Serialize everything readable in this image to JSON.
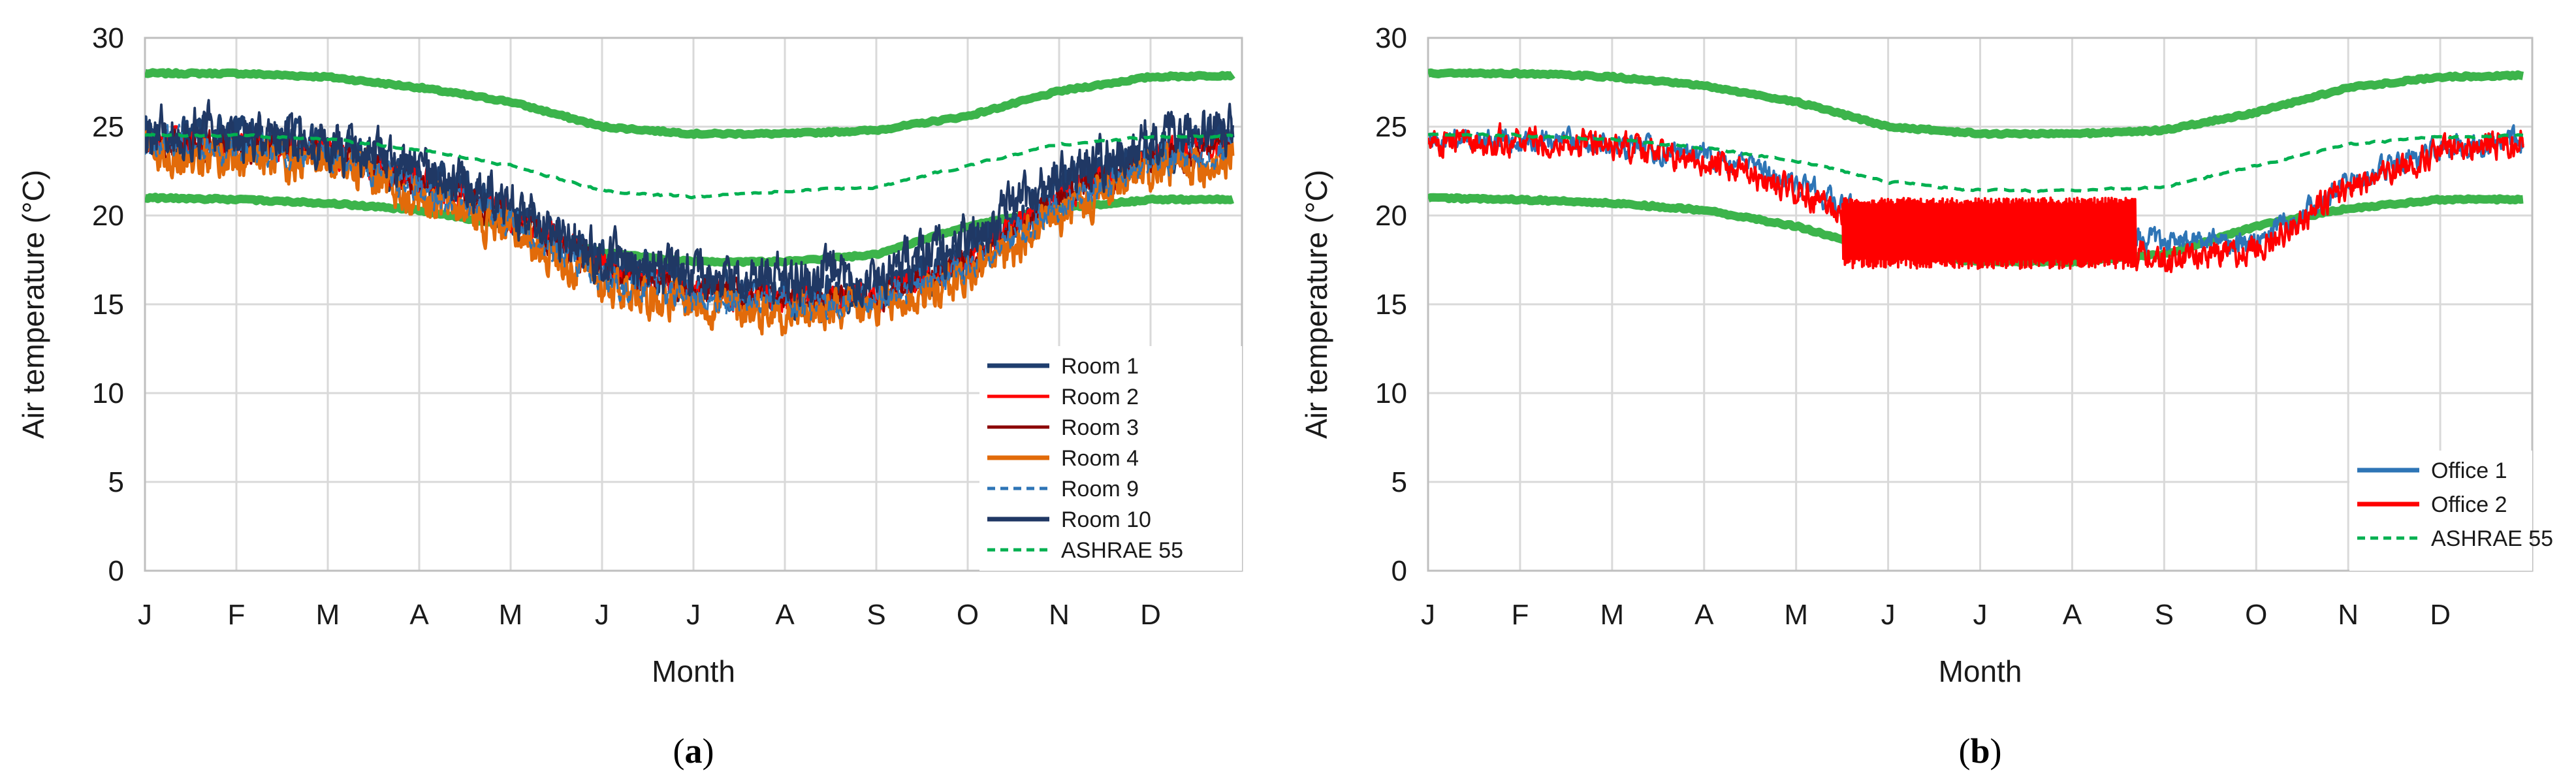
{
  "chart_data": [
    {
      "type": "line",
      "panel_label": "a",
      "xlabel": "Month",
      "ylabel": "Air temperature (°C)",
      "ylim": [
        0,
        30
      ],
      "yticks": [
        0,
        5,
        10,
        15,
        20,
        25,
        30
      ],
      "x_tick_labels": [
        "J",
        "F",
        "M",
        "A",
        "M",
        "J",
        "J",
        "A",
        "S",
        "O",
        "N",
        "D"
      ],
      "xlim_months": [
        0,
        11.9
      ],
      "grid": true,
      "legend_position": "bottom-right",
      "series": [
        {
          "name": "Room 1",
          "color": "#1f3e6e",
          "dash": "solid",
          "width": 9,
          "x": [
            0,
            1,
            2,
            3,
            4,
            5,
            6,
            7,
            8,
            9,
            10,
            11,
            11.9
          ],
          "y": [
            24.6,
            24.4,
            24.0,
            22.3,
            20.2,
            17.4,
            16.0,
            15.4,
            15.6,
            17.9,
            21.4,
            23.6,
            24.5
          ],
          "noise": 0.9
        },
        {
          "name": "Room 2",
          "color": "#ff0000",
          "dash": "solid",
          "width": 5,
          "x": [
            0,
            1,
            2,
            3,
            4,
            5,
            6,
            7,
            8,
            9,
            10,
            11,
            11.9
          ],
          "y": [
            24.2,
            24.0,
            23.6,
            21.9,
            19.9,
            17.0,
            15.8,
            15.2,
            15.3,
            17.4,
            21.0,
            23.2,
            24.1
          ],
          "noise": 0.6
        },
        {
          "name": "Room 3",
          "color": "#8b0000",
          "dash": "solid",
          "width": 5,
          "x": [
            0,
            1,
            2,
            3,
            4,
            5,
            6,
            7,
            8,
            9,
            10,
            11,
            11.9
          ],
          "y": [
            24.1,
            23.9,
            23.5,
            21.8,
            19.8,
            16.9,
            15.7,
            15.1,
            15.2,
            17.3,
            20.9,
            23.1,
            24.0
          ],
          "noise": 0.6
        },
        {
          "name": "Room 4",
          "color": "#e26b0a",
          "dash": "solid",
          "width": 9,
          "x": [
            0,
            1,
            2,
            3,
            4,
            5,
            6,
            7,
            8,
            9,
            10,
            11,
            11.9
          ],
          "y": [
            23.6,
            23.3,
            23.0,
            21.2,
            19.2,
            16.2,
            15.1,
            14.6,
            14.6,
            16.6,
            20.0,
            22.4,
            23.3
          ],
          "noise": 0.9
        },
        {
          "name": "Room 9",
          "color": "#2e75b6",
          "dash": "dashed",
          "width": 5,
          "x": [
            0,
            1,
            2,
            3,
            4,
            5,
            6,
            7,
            8,
            9,
            10,
            11,
            11.9
          ],
          "y": [
            24.0,
            23.8,
            23.4,
            21.7,
            19.7,
            16.5,
            15.5,
            15.0,
            15.2,
            17.2,
            20.6,
            23.0,
            23.8
          ],
          "noise": 0.7
        },
        {
          "name": "Room 10",
          "color": "#203864",
          "dash": "solid",
          "width": 7,
          "x": [
            0,
            1,
            2,
            3,
            4,
            5,
            6,
            7,
            8,
            9,
            10,
            11,
            11.9
          ],
          "y": [
            24.8,
            24.6,
            24.2,
            22.5,
            20.4,
            17.7,
            16.5,
            16.4,
            16.6,
            18.6,
            22.2,
            24.0,
            24.8
          ],
          "noise": 1.1
        },
        {
          "name": "ASHRAE 55",
          "color": "#00b050",
          "dash": "dashed",
          "width": 5,
          "x": [
            0,
            1,
            2,
            3,
            4,
            5,
            6,
            7,
            8,
            9,
            10,
            11,
            11.9
          ],
          "y": [
            24.5,
            24.5,
            24.3,
            23.7,
            22.8,
            21.4,
            21.0,
            21.4,
            21.6,
            22.8,
            24.0,
            24.4,
            24.5
          ],
          "noise": 0.05
        }
      ],
      "bands": [
        {
          "name": "",
          "color": "#3cb44b",
          "width": 13,
          "x": [
            0,
            1,
            2,
            3,
            4,
            5,
            6,
            7,
            8,
            9,
            10,
            11,
            11.9
          ],
          "y": [
            28.0,
            28.0,
            27.8,
            27.2,
            26.4,
            25.0,
            24.6,
            24.6,
            24.8,
            25.6,
            27.0,
            27.8,
            27.9
          ]
        },
        {
          "name": "",
          "color": "#3cb44b",
          "width": 13,
          "x": [
            0,
            1,
            2,
            3,
            4,
            5,
            6,
            7,
            8,
            9,
            10,
            11,
            11.9
          ],
          "y": [
            21.0,
            20.9,
            20.7,
            20.3,
            19.4,
            17.9,
            17.4,
            17.4,
            17.8,
            19.4,
            20.4,
            20.9,
            20.9
          ]
        }
      ]
    },
    {
      "type": "line",
      "panel_label": "b",
      "xlabel": "Month",
      "ylabel": "Air temperature (°C)",
      "ylim": [
        0,
        30
      ],
      "yticks": [
        0,
        5,
        10,
        15,
        20,
        25,
        30
      ],
      "x_tick_labels": [
        "J",
        "F",
        "M",
        "A",
        "M",
        "J",
        "J",
        "A",
        "S",
        "O",
        "N",
        "D"
      ],
      "xlim_months": [
        0,
        11.9
      ],
      "grid": true,
      "legend_position": "bottom-right",
      "series": [
        {
          "name": "Office 1",
          "color": "#2e75b6",
          "dash": "solid",
          "width": 7,
          "x": [
            0,
            1,
            2,
            3,
            4,
            5,
            6,
            7,
            8,
            9,
            10,
            11,
            11.9
          ],
          "y": [
            24.2,
            24.2,
            24.0,
            23.4,
            21.8,
            19.4,
            18.8,
            18.8,
            18.6,
            18.4,
            21.8,
            23.8,
            24.2
          ],
          "noise": 0.5
        },
        {
          "name": "Office 2",
          "color": "#ff0000",
          "dash": "solid",
          "width": 7,
          "x": [
            0,
            1,
            2,
            3,
            4,
            5,
            6,
            7,
            8,
            9,
            10,
            11,
            11.9
          ],
          "y": [
            24.2,
            24.2,
            24.0,
            23.0,
            21.4,
            19.0,
            18.6,
            18.6,
            17.6,
            18.0,
            21.6,
            23.6,
            24.2
          ],
          "noise": 0.6,
          "oscillation": {
            "from_month": 4.5,
            "to_month": 7.7,
            "high": 21.0,
            "low": 17.0
          }
        },
        {
          "name": "ASHRAE 55",
          "color": "#00b050",
          "dash": "dashed",
          "width": 5,
          "x": [
            0,
            1,
            2,
            3,
            4,
            5,
            6,
            7,
            8,
            9,
            10,
            11,
            11.9
          ],
          "y": [
            24.5,
            24.5,
            24.3,
            23.8,
            23.1,
            21.9,
            21.4,
            21.4,
            21.6,
            22.8,
            24.0,
            24.4,
            24.5
          ],
          "noise": 0.05
        }
      ],
      "bands": [
        {
          "name": "",
          "color": "#3cb44b",
          "width": 13,
          "x": [
            0,
            1,
            2,
            3,
            4,
            5,
            6,
            7,
            8,
            9,
            10,
            11,
            11.9
          ],
          "y": [
            28.0,
            28.0,
            27.8,
            27.3,
            26.4,
            25.0,
            24.6,
            24.6,
            24.8,
            25.8,
            27.2,
            27.8,
            27.9
          ]
        },
        {
          "name": "",
          "color": "#3cb44b",
          "width": 13,
          "x": [
            0,
            1,
            2,
            3,
            4,
            5,
            6,
            7,
            8,
            9,
            10,
            11,
            11.9
          ],
          "y": [
            21.0,
            20.9,
            20.7,
            20.3,
            19.4,
            17.9,
            17.4,
            17.4,
            17.8,
            19.4,
            20.4,
            20.9,
            20.9
          ]
        }
      ]
    }
  ]
}
